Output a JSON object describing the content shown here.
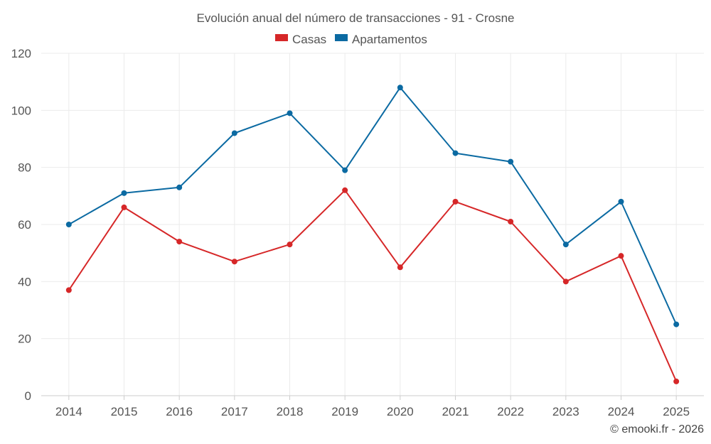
{
  "chart_data": {
    "type": "line",
    "title": "Evolución anual del número de transacciones - 91 - Crosne",
    "categories": [
      "2014",
      "2015",
      "2016",
      "2017",
      "2018",
      "2019",
      "2020",
      "2021",
      "2022",
      "2023",
      "2024",
      "2025"
    ],
    "series": [
      {
        "name": "Casas",
        "color": "#d62728",
        "values": [
          37,
          66,
          54,
          47,
          53,
          72,
          45,
          68,
          61,
          40,
          49,
          5
        ]
      },
      {
        "name": "Apartamentos",
        "color": "#0b6aa2",
        "values": [
          60,
          71,
          73,
          92,
          99,
          79,
          108,
          85,
          82,
          53,
          68,
          25
        ]
      }
    ],
    "ylim": [
      0,
      120
    ],
    "yticks": [
      0,
      20,
      40,
      60,
      80,
      100,
      120
    ],
    "grid": true,
    "legend": "top-center"
  },
  "credit": "© emooki.fr - 2026"
}
